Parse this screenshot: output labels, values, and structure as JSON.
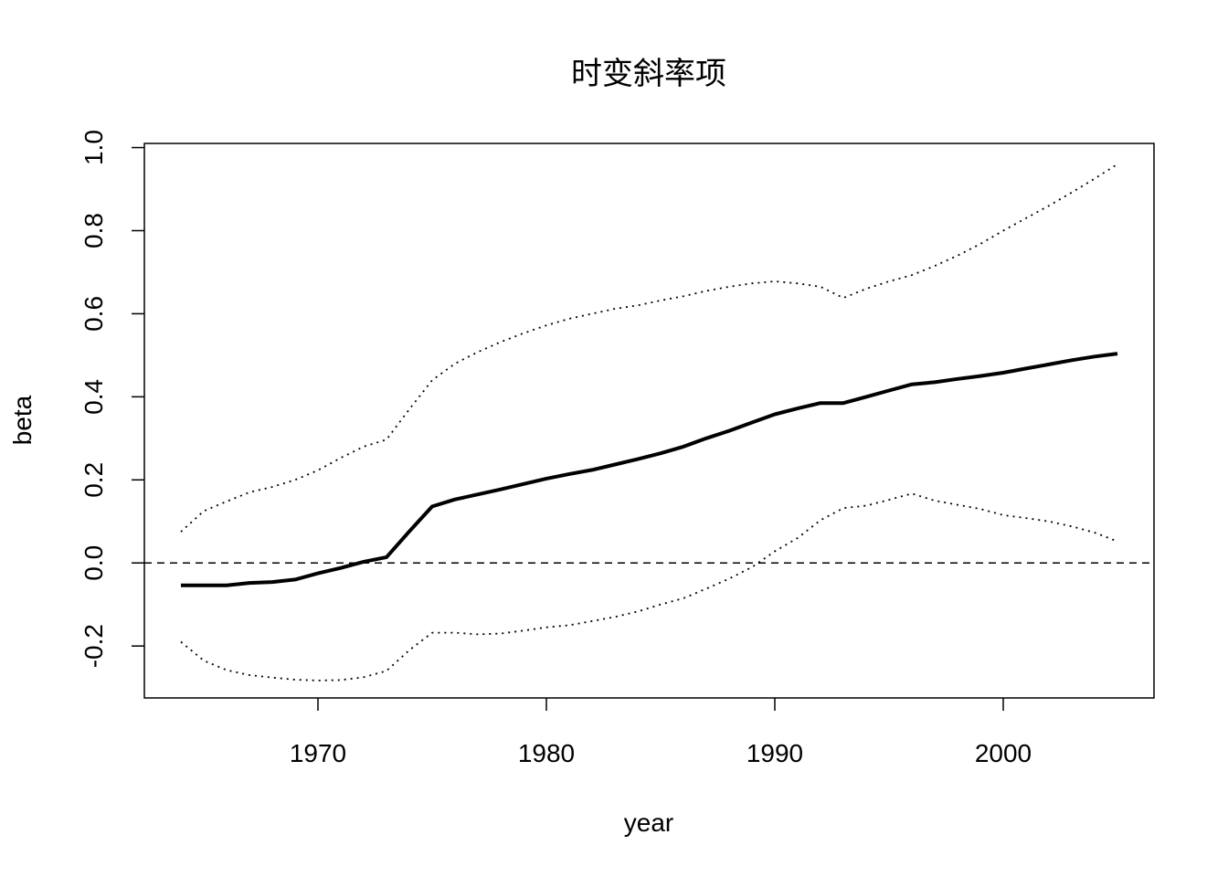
{
  "chart_data": {
    "type": "line",
    "title": "时变斜率项",
    "xlabel": "year",
    "ylabel": "beta",
    "xlim": [
      1962.4,
      2006.6
    ],
    "ylim": [
      -0.325,
      1.01
    ],
    "x_ticks": [
      1970,
      1980,
      1990,
      2000
    ],
    "x_tick_labels": [
      "1970",
      "1980",
      "1990",
      "2000"
    ],
    "y_ticks": [
      -0.2,
      0.0,
      0.2,
      0.4,
      0.6,
      0.8,
      1.0
    ],
    "y_tick_labels": [
      "-0.2",
      "0.0",
      "0.2",
      "0.4",
      "0.6",
      "0.8",
      "1.0"
    ],
    "grid": false,
    "legend": "none",
    "reference_line": {
      "y": 0.0,
      "style": "dashed"
    },
    "x": [
      1964,
      1965,
      1966,
      1967,
      1968,
      1969,
      1970,
      1971,
      1972,
      1973,
      1974,
      1975,
      1976,
      1977,
      1978,
      1979,
      1980,
      1981,
      1982,
      1983,
      1984,
      1985,
      1986,
      1987,
      1988,
      1989,
      1990,
      1991,
      1992,
      1993,
      1994,
      1995,
      1996,
      1997,
      1998,
      1999,
      2000,
      2001,
      2002,
      2003,
      2004,
      2005
    ],
    "series": [
      {
        "style": "solid",
        "color": "#000000",
        "values": [
          -0.054,
          -0.054,
          -0.054,
          -0.048,
          -0.046,
          -0.04,
          -0.025,
          -0.012,
          0.003,
          0.014,
          0.076,
          0.136,
          0.153,
          0.165,
          0.177,
          0.19,
          0.203,
          0.214,
          0.224,
          0.237,
          0.25,
          0.264,
          0.28,
          0.3,
          0.318,
          0.338,
          0.358,
          0.372,
          0.385,
          0.385,
          0.4,
          0.415,
          0.43,
          0.435,
          0.443,
          0.45,
          0.458,
          0.468,
          0.478,
          0.488,
          0.497,
          0.504
        ]
      },
      {
        "style": "dotted",
        "color": "#000000",
        "values": [
          0.075,
          0.125,
          0.148,
          0.17,
          0.183,
          0.2,
          0.223,
          0.253,
          0.28,
          0.297,
          0.37,
          0.44,
          0.48,
          0.508,
          0.532,
          0.553,
          0.572,
          0.588,
          0.6,
          0.612,
          0.62,
          0.632,
          0.642,
          0.655,
          0.665,
          0.673,
          0.678,
          0.673,
          0.665,
          0.638,
          0.66,
          0.678,
          0.693,
          0.715,
          0.74,
          0.768,
          0.8,
          0.83,
          0.86,
          0.892,
          0.925,
          0.96
        ]
      },
      {
        "style": "dotted",
        "color": "#000000",
        "values": [
          -0.19,
          -0.235,
          -0.258,
          -0.27,
          -0.276,
          -0.281,
          -0.283,
          -0.282,
          -0.275,
          -0.26,
          -0.21,
          -0.168,
          -0.168,
          -0.172,
          -0.17,
          -0.163,
          -0.155,
          -0.15,
          -0.14,
          -0.13,
          -0.117,
          -0.1,
          -0.085,
          -0.062,
          -0.038,
          -0.01,
          0.028,
          0.06,
          0.103,
          0.132,
          0.138,
          0.152,
          0.167,
          0.15,
          0.14,
          0.13,
          0.115,
          0.108,
          0.1,
          0.088,
          0.073,
          0.052
        ]
      }
    ]
  }
}
